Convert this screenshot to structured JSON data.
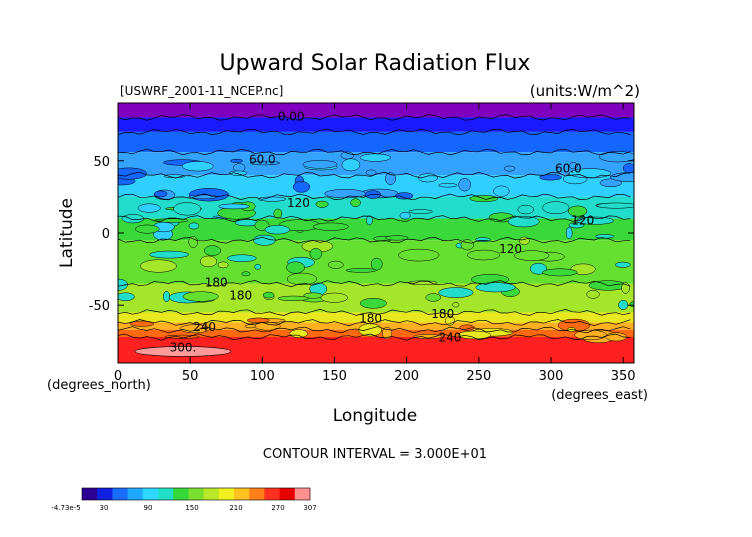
{
  "chart_data": {
    "type": "heatmap",
    "title": "Upward Solar Radiation Flux",
    "subtitle_left": "[USWRF_2001-11_NCEP.nc]",
    "units_label": "(units:W/m^2)",
    "xlabel": "Longitude",
    "ylabel": "Latitude",
    "x_unit_label": "(degrees_east)",
    "y_unit_label": "(degrees_north)",
    "xlim": [
      0,
      357.5
    ],
    "ylim": [
      -90,
      90
    ],
    "x_ticks": [
      0,
      50,
      100,
      150,
      200,
      250,
      300,
      350
    ],
    "y_ticks": [
      50,
      0,
      -50
    ],
    "contour_interval_text": "CONTOUR INTERVAL = 3.000E+01",
    "contour_labels": [
      {
        "text": "0.00",
        "lon": 120,
        "lat": 78
      },
      {
        "text": "60.0",
        "lon": 100,
        "lat": 48
      },
      {
        "text": "60.0",
        "lon": 312,
        "lat": 42
      },
      {
        "text": "120",
        "lon": 125,
        "lat": 18
      },
      {
        "text": "120",
        "lon": 322,
        "lat": 6
      },
      {
        "text": "120",
        "lon": 272,
        "lat": -14
      },
      {
        "text": "180",
        "lon": 68,
        "lat": -37
      },
      {
        "text": "180",
        "lon": 85,
        "lat": -46
      },
      {
        "text": "180",
        "lon": 175,
        "lat": -62
      },
      {
        "text": "180",
        "lon": 225,
        "lat": -59
      },
      {
        "text": "240",
        "lon": 60,
        "lat": -68
      },
      {
        "text": "240",
        "lon": 230,
        "lat": -75
      },
      {
        "text": "300.",
        "lon": 45,
        "lat": -82
      }
    ],
    "bands": [
      {
        "lat_top": 90,
        "lat_bottom": 80,
        "color": "#8000c0"
      },
      {
        "lat_top": 80,
        "lat_bottom": 70,
        "color": "#1a1aff"
      },
      {
        "lat_top": 70,
        "lat_bottom": 56,
        "color": "#1466ff"
      },
      {
        "lat_top": 56,
        "lat_bottom": 40,
        "color": "#33a3ff"
      },
      {
        "lat_top": 40,
        "lat_bottom": 25,
        "color": "#2fd0ff"
      },
      {
        "lat_top": 25,
        "lat_bottom": 10,
        "color": "#22ddcc"
      },
      {
        "lat_top": 10,
        "lat_bottom": -5,
        "color": "#3ad83a"
      },
      {
        "lat_top": -5,
        "lat_bottom": -35,
        "color": "#66e030"
      },
      {
        "lat_top": -35,
        "lat_bottom": -55,
        "color": "#a6e62a"
      },
      {
        "lat_top": -55,
        "lat_bottom": -62,
        "color": "#e8e820"
      },
      {
        "lat_top": -62,
        "lat_bottom": -67,
        "color": "#ffb020"
      },
      {
        "lat_top": -67,
        "lat_bottom": -72,
        "color": "#ff6a10"
      },
      {
        "lat_top": -72,
        "lat_bottom": -90,
        "color": "#ff2020"
      }
    ],
    "colorbar": {
      "tick_labels": [
        "-4.73e-5",
        "30",
        "90",
        "150",
        "210",
        "270",
        "307"
      ],
      "tick_values": [
        0,
        30,
        90,
        150,
        210,
        270,
        307
      ],
      "vmin": 0,
      "vmax": 307,
      "colors": [
        "#2c0094",
        "#1020e0",
        "#1a6cff",
        "#1fa8ff",
        "#2ed8ff",
        "#22e0c8",
        "#34d838",
        "#7ae030",
        "#b8e828",
        "#f0f020",
        "#ffc020",
        "#ff8018",
        "#ff3020",
        "#e80000",
        "#ff9090"
      ]
    }
  }
}
